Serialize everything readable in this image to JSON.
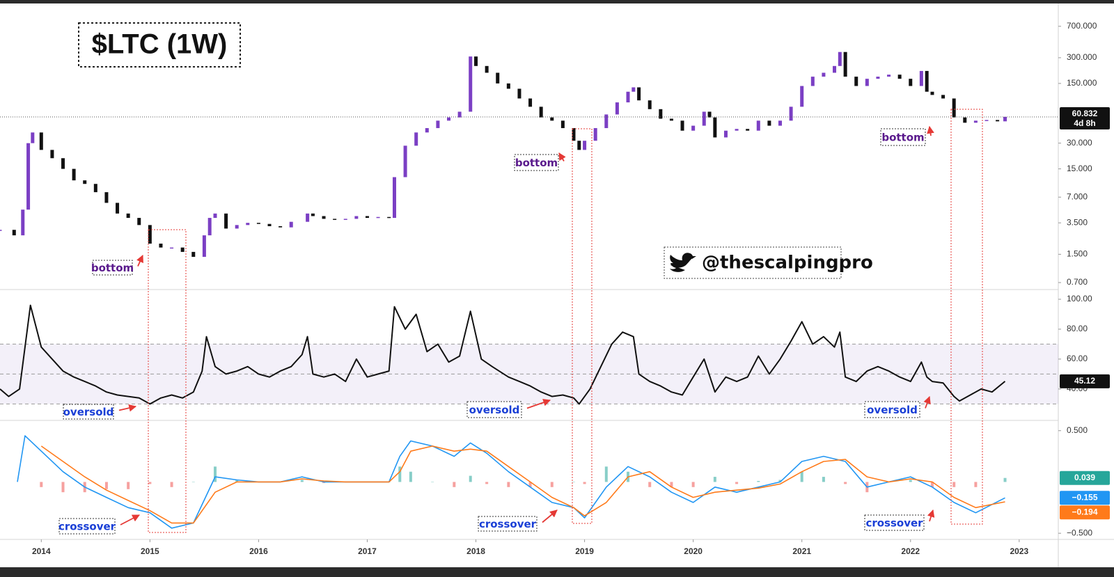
{
  "chart_data": [
    {
      "type": "candlestick",
      "title": "$LTC (1W)",
      "watermark": "@thescalpingpro",
      "yscale": "log",
      "up_color": "#7b3fc4",
      "down_color": "#111111",
      "x": [
        2013.62,
        2013.75,
        2013.83,
        2013.88,
        2013.92,
        2014.0,
        2014.1,
        2014.2,
        2014.3,
        2014.4,
        2014.5,
        2014.6,
        2014.7,
        2014.8,
        2014.9,
        2015.0,
        2015.1,
        2015.2,
        2015.3,
        2015.4,
        2015.5,
        2015.55,
        2015.6,
        2015.7,
        2015.8,
        2015.9,
        2016.0,
        2016.1,
        2016.2,
        2016.3,
        2016.45,
        2016.5,
        2016.6,
        2016.7,
        2016.8,
        2016.9,
        2017.0,
        2017.1,
        2017.2,
        2017.25,
        2017.35,
        2017.45,
        2017.55,
        2017.65,
        2017.75,
        2017.85,
        2017.95,
        2018.0,
        2018.1,
        2018.2,
        2018.3,
        2018.4,
        2018.5,
        2018.6,
        2018.7,
        2018.8,
        2018.9,
        2018.95,
        2019.0,
        2019.1,
        2019.2,
        2019.3,
        2019.4,
        2019.45,
        2019.5,
        2019.6,
        2019.7,
        2019.8,
        2019.9,
        2020.0,
        2020.1,
        2020.15,
        2020.2,
        2020.3,
        2020.4,
        2020.5,
        2020.6,
        2020.7,
        2020.8,
        2020.9,
        2021.0,
        2021.1,
        2021.2,
        2021.3,
        2021.35,
        2021.4,
        2021.5,
        2021.6,
        2021.7,
        2021.8,
        2021.9,
        2022.0,
        2022.1,
        2022.15,
        2022.2,
        2022.3,
        2022.4,
        2022.5,
        2022.6,
        2022.7,
        2022.8,
        2022.87
      ],
      "values": [
        2.9,
        2.5,
        5,
        30,
        40,
        25,
        20,
        15,
        11,
        10,
        8,
        6,
        4.5,
        4,
        3.3,
        2.0,
        1.8,
        1.8,
        1.6,
        1.4,
        2.5,
        4.0,
        4.5,
        3.0,
        3.3,
        3.5,
        3.4,
        3.2,
        3.1,
        3.6,
        4.5,
        4.2,
        3.9,
        3.8,
        3.9,
        4.2,
        4.0,
        4.1,
        4.0,
        12,
        28,
        40,
        45,
        55,
        60,
        70,
        310,
        240,
        200,
        150,
        130,
        100,
        80,
        60,
        55,
        45,
        32,
        25,
        32,
        45,
        65,
        90,
        120,
        135,
        95,
        75,
        58,
        55,
        42,
        48,
        70,
        60,
        35,
        42,
        44,
        42,
        55,
        48,
        55,
        80,
        140,
        180,
        200,
        240,
        350,
        180,
        140,
        170,
        180,
        190,
        170,
        140,
        210,
        120,
        110,
        100,
        60,
        52,
        55,
        56,
        54,
        60.832
      ],
      "countdown": "4d 8h",
      "xlim": [
        2013.62,
        2023.36
      ],
      "ylim": [
        0.58,
        1270
      ],
      "yticks": [
        {
          "value": 700,
          "label": "700.000"
        },
        {
          "value": 300,
          "label": "300.000"
        },
        {
          "value": 150,
          "label": "150.000"
        },
        {
          "value": 30,
          "label": "30.000"
        },
        {
          "value": 15,
          "label": "15.000"
        },
        {
          "value": 7,
          "label": "7.000"
        },
        {
          "value": 3.5,
          "label": "3.500"
        },
        {
          "value": 1.5,
          "label": "1.500"
        },
        {
          "value": 0.7,
          "label": "0.700"
        }
      ],
      "annotations": [
        "bottom",
        "bottom",
        "bottom"
      ],
      "annotation_color": "#5a1a8c"
    },
    {
      "type": "line",
      "color": "#111111",
      "band": [
        30,
        70
      ],
      "midline": 50,
      "band_color": "#7e57c2",
      "x": [
        2013.62,
        2013.7,
        2013.8,
        2013.9,
        2014.0,
        2014.1,
        2014.2,
        2014.3,
        2014.4,
        2014.5,
        2014.6,
        2014.7,
        2014.8,
        2014.9,
        2015.0,
        2015.1,
        2015.2,
        2015.3,
        2015.4,
        2015.48,
        2015.52,
        2015.6,
        2015.7,
        2015.8,
        2015.9,
        2016.0,
        2016.1,
        2016.2,
        2016.3,
        2016.4,
        2016.45,
        2016.5,
        2016.6,
        2016.7,
        2016.8,
        2016.9,
        2017.0,
        2017.1,
        2017.2,
        2017.25,
        2017.35,
        2017.45,
        2017.55,
        2017.65,
        2017.75,
        2017.85,
        2017.95,
        2018.05,
        2018.15,
        2018.3,
        2018.4,
        2018.5,
        2018.6,
        2018.7,
        2018.8,
        2018.9,
        2018.95,
        2019.05,
        2019.15,
        2019.25,
        2019.35,
        2019.45,
        2019.5,
        2019.6,
        2019.7,
        2019.8,
        2019.9,
        2020.0,
        2020.1,
        2020.2,
        2020.3,
        2020.4,
        2020.5,
        2020.6,
        2020.7,
        2020.8,
        2020.9,
        2021.0,
        2021.1,
        2021.2,
        2021.3,
        2021.35,
        2021.4,
        2021.5,
        2021.6,
        2021.7,
        2021.8,
        2021.9,
        2022.0,
        2022.1,
        2022.15,
        2022.2,
        2022.3,
        2022.4,
        2022.45,
        2022.55,
        2022.65,
        2022.75,
        2022.87
      ],
      "values": [
        40,
        35,
        40,
        96,
        68,
        60,
        52,
        48,
        45,
        42,
        38,
        36,
        35,
        34,
        30,
        34,
        36,
        34,
        38,
        52,
        75,
        55,
        50,
        52,
        55,
        50,
        48,
        52,
        55,
        63,
        75,
        50,
        48,
        50,
        45,
        60,
        48,
        50,
        52,
        95,
        80,
        90,
        65,
        70,
        58,
        62,
        92,
        60,
        55,
        48,
        45,
        42,
        38,
        35,
        36,
        34,
        30,
        40,
        55,
        70,
        78,
        75,
        50,
        45,
        42,
        38,
        36,
        48,
        60,
        38,
        48,
        45,
        48,
        62,
        50,
        60,
        72,
        85,
        70,
        75,
        68,
        78,
        48,
        45,
        52,
        55,
        52,
        48,
        45,
        58,
        48,
        45,
        44,
        35,
        32,
        36,
        40,
        38,
        45.12
      ],
      "xlim": [
        2013.62,
        2023.36
      ],
      "ylim": [
        19,
        106.5
      ],
      "yticks": [
        {
          "value": 100,
          "label": "100.00"
        },
        {
          "value": 80,
          "label": "80.00"
        },
        {
          "value": 60,
          "label": "60.00"
        },
        {
          "value": 40,
          "label": "40.00"
        }
      ],
      "annotations": [
        "oversold",
        "oversold",
        "oversold"
      ],
      "annotation_color": "#1a3fd6"
    },
    {
      "type": "macd",
      "x": [
        2013.78,
        2013.85,
        2014.0,
        2014.2,
        2014.4,
        2014.6,
        2014.8,
        2015.0,
        2015.2,
        2015.4,
        2015.6,
        2015.8,
        2016.0,
        2016.2,
        2016.4,
        2016.6,
        2016.8,
        2017.0,
        2017.2,
        2017.3,
        2017.4,
        2017.6,
        2017.8,
        2017.95,
        2018.1,
        2018.3,
        2018.5,
        2018.7,
        2018.9,
        2019.0,
        2019.2,
        2019.4,
        2019.6,
        2019.8,
        2020.0,
        2020.2,
        2020.4,
        2020.6,
        2020.8,
        2021.0,
        2021.2,
        2021.4,
        2021.6,
        2021.8,
        2022.0,
        2022.2,
        2022.4,
        2022.6,
        2022.87
      ],
      "series": [
        {
          "color": "#2196f3",
          "last_label": "−0.155",
          "values": [
            0.0,
            0.45,
            0.3,
            0.1,
            -0.05,
            -0.15,
            -0.25,
            -0.3,
            -0.45,
            -0.4,
            0.05,
            0.02,
            0.0,
            0.0,
            0.05,
            0.0,
            0.0,
            0.0,
            0.0,
            0.25,
            0.4,
            0.35,
            0.25,
            0.38,
            0.28,
            0.1,
            -0.05,
            -0.2,
            -0.25,
            -0.35,
            -0.05,
            0.15,
            0.05,
            -0.1,
            -0.2,
            -0.05,
            -0.1,
            -0.05,
            0.0,
            0.2,
            0.25,
            0.2,
            -0.05,
            0.0,
            0.05,
            -0.05,
            -0.2,
            -0.3,
            -0.155
          ]
        },
        {
          "color": "#ff7a1a",
          "last_label": "−0.194",
          "values": [
            null,
            null,
            0.35,
            0.2,
            0.05,
            -0.08,
            -0.18,
            -0.28,
            -0.4,
            -0.4,
            -0.1,
            0.0,
            0.0,
            0.0,
            0.03,
            0.01,
            0.0,
            0.0,
            0.0,
            0.1,
            0.3,
            0.35,
            0.3,
            0.32,
            0.3,
            0.15,
            0.0,
            -0.15,
            -0.25,
            -0.33,
            -0.2,
            0.05,
            0.1,
            -0.05,
            -0.15,
            -0.1,
            -0.08,
            -0.06,
            -0.02,
            0.1,
            0.2,
            0.22,
            0.05,
            0.0,
            0.03,
            0.0,
            -0.15,
            -0.25,
            -0.194
          ]
        }
      ],
      "histogram": {
        "colors": [
          "#26a69a",
          "#ef5350"
        ],
        "values": [
          null,
          null,
          -0.05,
          -0.1,
          -0.1,
          -0.07,
          -0.07,
          -0.02,
          -0.05,
          0,
          0.15,
          0.02,
          0,
          0,
          0.02,
          -0.01,
          0,
          0,
          0,
          0.15,
          0.1,
          0,
          -0.05,
          0.06,
          -0.02,
          -0.05,
          -0.05,
          -0.05,
          0,
          -0.02,
          0.15,
          0.1,
          -0.05,
          -0.05,
          -0.05,
          0.05,
          -0.02,
          0.01,
          0.02,
          0.1,
          0.05,
          -0.02,
          -0.1,
          0,
          0.02,
          -0.05,
          -0.05,
          -0.05,
          0.039
        ]
      },
      "xlim": [
        2013.62,
        2023.36
      ],
      "ylim": [
        -0.56,
        0.6
      ],
      "xticks": [
        2014,
        2015,
        2016,
        2017,
        2018,
        2019,
        2020,
        2021,
        2022,
        2023
      ],
      "yticks": [
        {
          "value": 0.5,
          "label": "0.500"
        },
        {
          "value": -0.5,
          "label": "−0.500"
        }
      ],
      "annotations": [
        "crossover",
        "crossover",
        "crossover"
      ],
      "annotation_color": "#1a3fd6"
    }
  ]
}
